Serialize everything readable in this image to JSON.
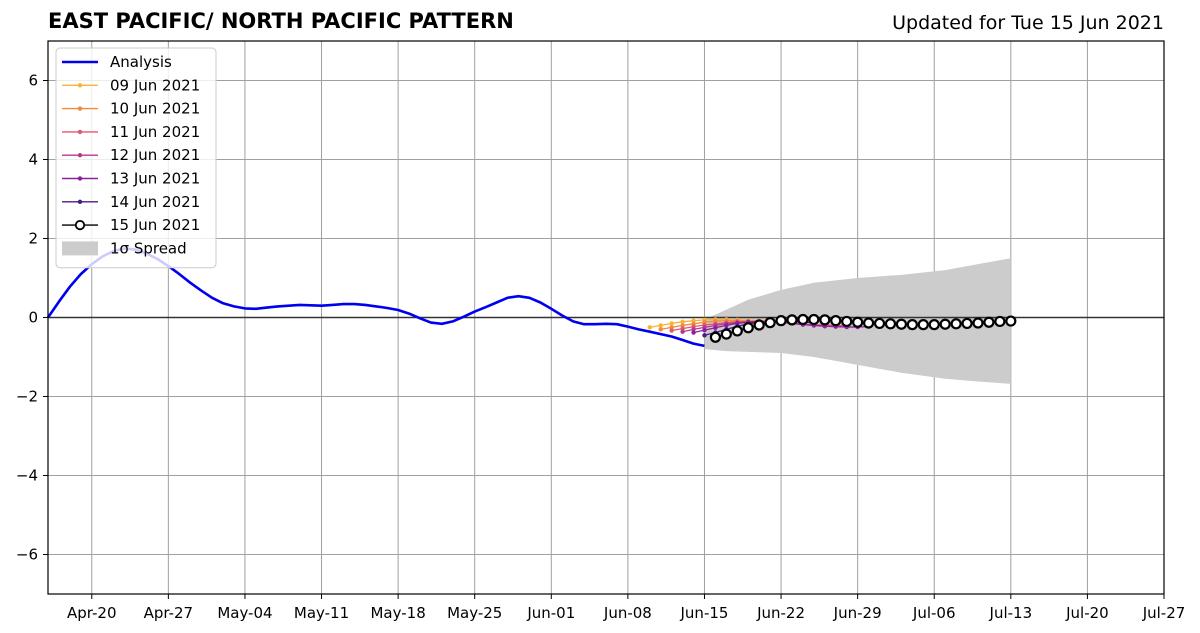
{
  "header": {
    "title": "EAST PACIFIC/ NORTH PACIFIC PATTERN",
    "subtitle": "Updated for Tue 15 Jun 2021"
  },
  "chart_data": {
    "type": "line",
    "title": "EAST PACIFIC/ NORTH PACIFIC PATTERN",
    "subtitle": "Updated for Tue 15 Jun 2021",
    "xlabel": "",
    "ylabel": "",
    "year": 2021,
    "xlim": [
      "2021-04-16",
      "2021-07-27"
    ],
    "ylim": [
      -7,
      7
    ],
    "grid": true,
    "zero_line": true,
    "legend_position": "top-left",
    "x_ticks": [
      {
        "date": "2021-04-20",
        "label": "Apr-20"
      },
      {
        "date": "2021-04-27",
        "label": "Apr-27"
      },
      {
        "date": "2021-05-04",
        "label": "May-04"
      },
      {
        "date": "2021-05-11",
        "label": "May-11"
      },
      {
        "date": "2021-05-18",
        "label": "May-18"
      },
      {
        "date": "2021-05-25",
        "label": "May-25"
      },
      {
        "date": "2021-06-01",
        "label": "Jun-01"
      },
      {
        "date": "2021-06-08",
        "label": "Jun-08"
      },
      {
        "date": "2021-06-15",
        "label": "Jun-15"
      },
      {
        "date": "2021-06-22",
        "label": "Jun-22"
      },
      {
        "date": "2021-06-29",
        "label": "Jun-29"
      },
      {
        "date": "2021-07-06",
        "label": "Jul-06"
      },
      {
        "date": "2021-07-13",
        "label": "Jul-13"
      },
      {
        "date": "2021-07-20",
        "label": "Jul-20"
      },
      {
        "date": "2021-07-27",
        "label": "Jul-27"
      }
    ],
    "y_ticks": [
      {
        "value": 6,
        "label": "6"
      },
      {
        "value": 4,
        "label": "4"
      },
      {
        "value": 2,
        "label": "2"
      },
      {
        "value": 0,
        "label": "0"
      },
      {
        "value": -2,
        "label": "−2"
      },
      {
        "value": -4,
        "label": "−4"
      },
      {
        "value": -6,
        "label": "−6"
      }
    ],
    "spread": {
      "name": "1σ Spread",
      "color": "#cccccc",
      "x": [
        "2021-06-15",
        "2021-06-17",
        "2021-06-19",
        "2021-06-22",
        "2021-06-25",
        "2021-06-29",
        "2021-07-03",
        "2021-07-07",
        "2021-07-10",
        "2021-07-13"
      ],
      "upper": [
        -0.05,
        0.2,
        0.45,
        0.7,
        0.88,
        1.0,
        1.08,
        1.2,
        1.35,
        1.5
      ],
      "lower": [
        -0.8,
        -0.85,
        -0.87,
        -0.9,
        -1.0,
        -1.2,
        -1.4,
        -1.55,
        -1.62,
        -1.68
      ]
    },
    "series": [
      {
        "name": "Analysis",
        "color": "#0000ee",
        "x": [
          "2021-04-16",
          "2021-04-17",
          "2021-04-18",
          "2021-04-19",
          "2021-04-20",
          "2021-04-21",
          "2021-04-22",
          "2021-04-23",
          "2021-04-24",
          "2021-04-25",
          "2021-04-26",
          "2021-04-27",
          "2021-04-28",
          "2021-04-29",
          "2021-04-30",
          "2021-05-01",
          "2021-05-02",
          "2021-05-03",
          "2021-05-04",
          "2021-05-05",
          "2021-05-06",
          "2021-05-07",
          "2021-05-08",
          "2021-05-09",
          "2021-05-10",
          "2021-05-11",
          "2021-05-12",
          "2021-05-13",
          "2021-05-14",
          "2021-05-15",
          "2021-05-16",
          "2021-05-17",
          "2021-05-18",
          "2021-05-19",
          "2021-05-20",
          "2021-05-21",
          "2021-05-22",
          "2021-05-23",
          "2021-05-24",
          "2021-05-25",
          "2021-05-26",
          "2021-05-27",
          "2021-05-28",
          "2021-05-29",
          "2021-05-30",
          "2021-05-31",
          "2021-06-01",
          "2021-06-02",
          "2021-06-03",
          "2021-06-04",
          "2021-06-05",
          "2021-06-06",
          "2021-06-07",
          "2021-06-08",
          "2021-06-09",
          "2021-06-10",
          "2021-06-11",
          "2021-06-12",
          "2021-06-13",
          "2021-06-14",
          "2021-06-15"
        ],
        "values": [
          0.0,
          0.4,
          0.78,
          1.1,
          1.35,
          1.55,
          1.68,
          1.75,
          1.72,
          1.62,
          1.48,
          1.3,
          1.1,
          0.88,
          0.68,
          0.5,
          0.36,
          0.28,
          0.23,
          0.22,
          0.25,
          0.28,
          0.3,
          0.32,
          0.31,
          0.3,
          0.32,
          0.34,
          0.34,
          0.32,
          0.28,
          0.24,
          0.19,
          0.1,
          -0.02,
          -0.13,
          -0.16,
          -0.1,
          0.02,
          0.15,
          0.26,
          0.38,
          0.5,
          0.54,
          0.5,
          0.38,
          0.22,
          0.05,
          -0.1,
          -0.17,
          -0.17,
          -0.16,
          -0.17,
          -0.23,
          -0.3,
          -0.36,
          -0.42,
          -0.48,
          -0.57,
          -0.66,
          -0.72
        ]
      },
      {
        "name": "09 Jun 2021",
        "color": "#f9b233",
        "x": [
          "2021-06-10",
          "2021-06-11",
          "2021-06-12",
          "2021-06-13",
          "2021-06-14",
          "2021-06-15",
          "2021-06-16",
          "2021-06-17",
          "2021-06-18",
          "2021-06-19",
          "2021-06-20",
          "2021-06-21",
          "2021-06-22",
          "2021-06-23",
          "2021-06-24"
        ],
        "values": [
          -0.25,
          -0.2,
          -0.15,
          -0.11,
          -0.08,
          -0.06,
          -0.05,
          -0.05,
          -0.06,
          -0.07,
          -0.08,
          -0.09,
          -0.1,
          -0.1,
          -0.1
        ]
      },
      {
        "name": "10 Jun 2021",
        "color": "#f08a3c",
        "x": [
          "2021-06-11",
          "2021-06-12",
          "2021-06-13",
          "2021-06-14",
          "2021-06-15",
          "2021-06-16",
          "2021-06-17",
          "2021-06-18",
          "2021-06-19",
          "2021-06-20",
          "2021-06-21",
          "2021-06-22",
          "2021-06-23",
          "2021-06-24",
          "2021-06-25"
        ],
        "values": [
          -0.3,
          -0.25,
          -0.2,
          -0.16,
          -0.12,
          -0.09,
          -0.08,
          -0.08,
          -0.09,
          -0.1,
          -0.11,
          -0.12,
          -0.12,
          -0.12,
          -0.12
        ]
      },
      {
        "name": "11 Jun 2021",
        "color": "#e05a6a",
        "x": [
          "2021-06-12",
          "2021-06-13",
          "2021-06-14",
          "2021-06-15",
          "2021-06-16",
          "2021-06-17",
          "2021-06-18",
          "2021-06-19",
          "2021-06-20",
          "2021-06-21",
          "2021-06-22",
          "2021-06-23",
          "2021-06-24",
          "2021-06-25",
          "2021-06-26",
          "2021-06-27",
          "2021-06-28"
        ],
        "values": [
          -0.33,
          -0.28,
          -0.23,
          -0.19,
          -0.16,
          -0.13,
          -0.11,
          -0.1,
          -0.1,
          -0.11,
          -0.13,
          -0.15,
          -0.17,
          -0.18,
          -0.19,
          -0.2,
          -0.2
        ]
      },
      {
        "name": "12 Jun 2021",
        "color": "#b9378e",
        "x": [
          "2021-06-13",
          "2021-06-14",
          "2021-06-15",
          "2021-06-16",
          "2021-06-17",
          "2021-06-18",
          "2021-06-19",
          "2021-06-20",
          "2021-06-21",
          "2021-06-22",
          "2021-06-23",
          "2021-06-24",
          "2021-06-25",
          "2021-06-26",
          "2021-06-27",
          "2021-06-28",
          "2021-06-29"
        ],
        "values": [
          -0.36,
          -0.3,
          -0.25,
          -0.2,
          -0.16,
          -0.13,
          -0.11,
          -0.1,
          -0.1,
          -0.12,
          -0.15,
          -0.18,
          -0.2,
          -0.22,
          -0.23,
          -0.24,
          -0.24
        ]
      },
      {
        "name": "13 Jun 2021",
        "color": "#8b1f9c",
        "x": [
          "2021-06-14",
          "2021-06-15",
          "2021-06-16",
          "2021-06-17",
          "2021-06-18",
          "2021-06-19",
          "2021-06-20",
          "2021-06-21",
          "2021-06-22",
          "2021-06-23",
          "2021-06-24",
          "2021-06-25",
          "2021-06-26",
          "2021-06-27",
          "2021-06-28",
          "2021-06-29",
          "2021-06-30"
        ],
        "values": [
          -0.38,
          -0.32,
          -0.26,
          -0.2,
          -0.15,
          -0.12,
          -0.1,
          -0.1,
          -0.12,
          -0.15,
          -0.18,
          -0.2,
          -0.22,
          -0.23,
          -0.24,
          -0.24,
          -0.23
        ]
      },
      {
        "name": "14 Jun 2021",
        "color": "#4a1a8a",
        "x": [
          "2021-06-15",
          "2021-06-16",
          "2021-06-17",
          "2021-06-18",
          "2021-06-19",
          "2021-06-20",
          "2021-06-21",
          "2021-06-22",
          "2021-06-23",
          "2021-06-24",
          "2021-06-25"
        ],
        "values": [
          -0.45,
          -0.38,
          -0.3,
          -0.22,
          -0.16,
          -0.12,
          -0.1,
          -0.1,
          -0.11,
          -0.12,
          -0.13
        ]
      },
      {
        "name": "15 Jun 2021",
        "color": "#000000",
        "marker_fill": "#ffffff",
        "x": [
          "2021-06-16",
          "2021-06-17",
          "2021-06-18",
          "2021-06-19",
          "2021-06-20",
          "2021-06-21",
          "2021-06-22",
          "2021-06-23",
          "2021-06-24",
          "2021-06-25",
          "2021-06-26",
          "2021-06-27",
          "2021-06-28",
          "2021-06-29",
          "2021-06-30",
          "2021-07-01",
          "2021-07-02",
          "2021-07-03",
          "2021-07-04",
          "2021-07-05",
          "2021-07-06",
          "2021-07-07",
          "2021-07-08",
          "2021-07-09",
          "2021-07-10",
          "2021-07-11",
          "2021-07-12",
          "2021-07-13"
        ],
        "values": [
          -0.5,
          -0.42,
          -0.34,
          -0.26,
          -0.19,
          -0.13,
          -0.08,
          -0.06,
          -0.05,
          -0.05,
          -0.06,
          -0.08,
          -0.1,
          -0.12,
          -0.14,
          -0.15,
          -0.16,
          -0.17,
          -0.18,
          -0.18,
          -0.18,
          -0.17,
          -0.16,
          -0.15,
          -0.14,
          -0.12,
          -0.1,
          -0.09
        ]
      }
    ]
  }
}
